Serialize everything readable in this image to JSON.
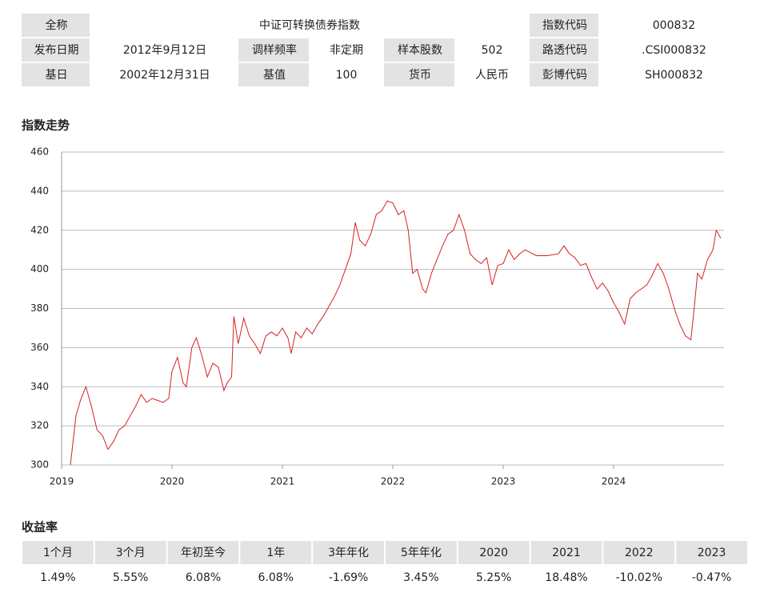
{
  "info": [
    [
      "全称",
      "中证可转换债券指数",
      "指数代码",
      "000832"
    ],
    [
      "发布日期",
      "2012年9月12日",
      "调样频率",
      "非定期",
      "样本股数",
      "502",
      "路透代码",
      ".CSI000832"
    ],
    [
      "基日",
      "2002年12月31日",
      "基值",
      "100",
      "货币",
      "人民币",
      "彭博代码",
      "SH000832"
    ]
  ],
  "chart_data": {
    "type": "line",
    "title": "指数走势",
    "color": "#d62020",
    "grid": true,
    "xlim": [
      2019,
      2025
    ],
    "xticks": [
      2019,
      2020,
      2021,
      2022,
      2023,
      2024
    ],
    "ylim": [
      300,
      460
    ],
    "yticks": [
      300,
      320,
      340,
      360,
      380,
      400,
      420,
      440,
      460
    ],
    "x": [
      2019.08,
      2019.1,
      2019.13,
      2019.17,
      2019.22,
      2019.27,
      2019.32,
      2019.37,
      2019.42,
      2019.47,
      2019.52,
      2019.57,
      2019.62,
      2019.67,
      2019.72,
      2019.77,
      2019.82,
      2019.87,
      2019.92,
      2019.97,
      2020.0,
      2020.05,
      2020.1,
      2020.13,
      2020.18,
      2020.22,
      2020.27,
      2020.32,
      2020.37,
      2020.42,
      2020.47,
      2020.5,
      2020.54,
      2020.56,
      2020.6,
      2020.65,
      2020.7,
      2020.75,
      2020.8,
      2020.85,
      2020.9,
      2020.95,
      2021.0,
      2021.05,
      2021.08,
      2021.12,
      2021.17,
      2021.22,
      2021.27,
      2021.32,
      2021.37,
      2021.42,
      2021.47,
      2021.52,
      2021.57,
      2021.62,
      2021.66,
      2021.7,
      2021.75,
      2021.8,
      2021.85,
      2021.9,
      2021.95,
      2022.0,
      2022.05,
      2022.1,
      2022.14,
      2022.18,
      2022.22,
      2022.27,
      2022.3,
      2022.35,
      2022.4,
      2022.45,
      2022.5,
      2022.55,
      2022.6,
      2022.65,
      2022.7,
      2022.75,
      2022.8,
      2022.85,
      2022.9,
      2022.95,
      2023.0,
      2023.05,
      2023.1,
      2023.15,
      2023.2,
      2023.3,
      2023.4,
      2023.5,
      2023.55,
      2023.6,
      2023.65,
      2023.7,
      2023.75,
      2023.8,
      2023.85,
      2023.9,
      2023.95,
      2024.0,
      2024.05,
      2024.1,
      2024.15,
      2024.2,
      2024.25,
      2024.3,
      2024.35,
      2024.4,
      2024.45,
      2024.5,
      2024.55,
      2024.6,
      2024.65,
      2024.7,
      2024.73,
      2024.76,
      2024.8,
      2024.85,
      2024.9,
      2024.93,
      2024.97
    ],
    "values": [
      300,
      310,
      325,
      333,
      340,
      330,
      318,
      315,
      308,
      312,
      318,
      320,
      325,
      330,
      336,
      332,
      334,
      333,
      332,
      334,
      348,
      355,
      342,
      340,
      360,
      365,
      356,
      345,
      352,
      350,
      338,
      342,
      345,
      376,
      362,
      375,
      366,
      362,
      357,
      366,
      368,
      366,
      370,
      365,
      357,
      368,
      365,
      370,
      367,
      372,
      376,
      381,
      386,
      392,
      400,
      408,
      424,
      415,
      412,
      418,
      428,
      430,
      435,
      434,
      428,
      430,
      420,
      398,
      400,
      390,
      388,
      398,
      405,
      412,
      418,
      420,
      428,
      420,
      408,
      405,
      403,
      406,
      392,
      402,
      403,
      410,
      405,
      408,
      410,
      407,
      407,
      408,
      412,
      408,
      406,
      402,
      403,
      396,
      390,
      393,
      389,
      383,
      378,
      372,
      385,
      388,
      390,
      392,
      397,
      403,
      398,
      390,
      380,
      372,
      366,
      364,
      380,
      398,
      395,
      405,
      410,
      420,
      416
    ]
  },
  "returns": {
    "title": "收益率",
    "headers": [
      "1个月",
      "3个月",
      "年初至今",
      "1年",
      "3年年化",
      "5年年化",
      "2020",
      "2021",
      "2022",
      "2023"
    ],
    "values": [
      "1.49%",
      "5.55%",
      "6.08%",
      "6.08%",
      "-1.69%",
      "3.45%",
      "5.25%",
      "18.48%",
      "-10.02%",
      "-0.47%"
    ]
  }
}
